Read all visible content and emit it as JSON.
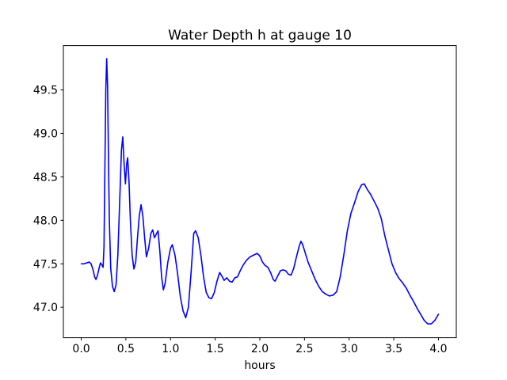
{
  "figure": {
    "background": "#ffffff",
    "text_color": "#000000",
    "spine_color": "#000000"
  },
  "chart_data": {
    "type": "line",
    "title": "Water Depth h at gauge 10",
    "xlabel": "hours",
    "ylabel": "",
    "grid": false,
    "legend": null,
    "xlim": [
      -0.2,
      4.2
    ],
    "ylim": [
      46.65,
      50.01
    ],
    "xticks": [
      0.0,
      0.5,
      1.0,
      1.5,
      2.0,
      2.5,
      3.0,
      3.5,
      4.0
    ],
    "yticks": [
      47.0,
      47.5,
      48.0,
      48.5,
      49.0,
      49.5
    ],
    "xtick_labels": [
      "0.0",
      "0.5",
      "1.0",
      "1.5",
      "2.0",
      "2.5",
      "3.0",
      "3.5",
      "4.0"
    ],
    "ytick_labels": [
      "47.0",
      "47.5",
      "48.0",
      "48.5",
      "49.0",
      "49.5"
    ],
    "series": [
      {
        "name": "h",
        "color": "#0000ff",
        "linewidth": 1.6,
        "x": [
          0.0,
          0.03,
          0.06,
          0.09,
          0.11,
          0.13,
          0.15,
          0.165,
          0.18,
          0.2,
          0.215,
          0.23,
          0.245,
          0.255,
          0.265,
          0.275,
          0.285,
          0.295,
          0.305,
          0.315,
          0.33,
          0.35,
          0.37,
          0.39,
          0.41,
          0.43,
          0.45,
          0.465,
          0.48,
          0.495,
          0.51,
          0.52,
          0.535,
          0.55,
          0.57,
          0.59,
          0.61,
          0.63,
          0.65,
          0.67,
          0.69,
          0.71,
          0.73,
          0.755,
          0.78,
          0.8,
          0.82,
          0.84,
          0.86,
          0.88,
          0.9,
          0.92,
          0.94,
          0.97,
          1.0,
          1.02,
          1.05,
          1.08,
          1.11,
          1.14,
          1.17,
          1.2,
          1.23,
          1.26,
          1.28,
          1.31,
          1.34,
          1.37,
          1.4,
          1.43,
          1.46,
          1.49,
          1.52,
          1.55,
          1.58,
          1.6,
          1.63,
          1.66,
          1.69,
          1.72,
          1.75,
          1.78,
          1.81,
          1.85,
          1.89,
          1.93,
          1.97,
          2.0,
          2.03,
          2.06,
          2.09,
          2.12,
          2.15,
          2.17,
          2.2,
          2.23,
          2.26,
          2.29,
          2.32,
          2.35,
          2.38,
          2.41,
          2.44,
          2.46,
          2.48,
          2.51,
          2.54,
          2.58,
          2.62,
          2.66,
          2.7,
          2.74,
          2.78,
          2.82,
          2.86,
          2.9,
          2.94,
          2.98,
          3.02,
          3.06,
          3.1,
          3.14,
          3.17,
          3.2,
          3.24,
          3.28,
          3.32,
          3.36,
          3.4,
          3.44,
          3.48,
          3.52,
          3.56,
          3.6,
          3.64,
          3.68,
          3.72,
          3.76,
          3.8,
          3.84,
          3.88,
          3.92,
          3.96,
          4.0
        ],
        "y": [
          47.5,
          47.5,
          47.51,
          47.52,
          47.5,
          47.44,
          47.35,
          47.32,
          47.36,
          47.45,
          47.51,
          47.49,
          47.46,
          47.7,
          48.6,
          49.5,
          49.86,
          49.55,
          48.7,
          48.0,
          47.45,
          47.24,
          47.18,
          47.26,
          47.6,
          48.2,
          48.8,
          48.96,
          48.65,
          48.42,
          48.66,
          48.72,
          48.45,
          48.0,
          47.6,
          47.44,
          47.52,
          47.8,
          48.05,
          48.18,
          48.05,
          47.8,
          47.58,
          47.68,
          47.85,
          47.89,
          47.8,
          47.84,
          47.88,
          47.65,
          47.35,
          47.2,
          47.28,
          47.52,
          47.68,
          47.72,
          47.6,
          47.38,
          47.12,
          46.96,
          46.88,
          47.0,
          47.4,
          47.85,
          47.88,
          47.8,
          47.6,
          47.35,
          47.17,
          47.11,
          47.1,
          47.17,
          47.3,
          47.4,
          47.35,
          47.31,
          47.34,
          47.3,
          47.29,
          47.34,
          47.35,
          47.42,
          47.48,
          47.54,
          47.58,
          47.6,
          47.62,
          47.59,
          47.52,
          47.48,
          47.46,
          47.4,
          47.32,
          47.3,
          47.36,
          47.42,
          47.43,
          47.42,
          47.38,
          47.37,
          47.45,
          47.58,
          47.7,
          47.76,
          47.72,
          47.62,
          47.52,
          47.42,
          47.32,
          47.24,
          47.18,
          47.15,
          47.13,
          47.14,
          47.18,
          47.35,
          47.6,
          47.88,
          48.08,
          48.2,
          48.33,
          48.41,
          48.42,
          48.36,
          48.3,
          48.22,
          48.14,
          48.02,
          47.82,
          47.66,
          47.5,
          47.4,
          47.33,
          47.28,
          47.22,
          47.14,
          47.07,
          46.99,
          46.92,
          46.85,
          46.81,
          46.81,
          46.85,
          46.92
        ]
      }
    ]
  }
}
